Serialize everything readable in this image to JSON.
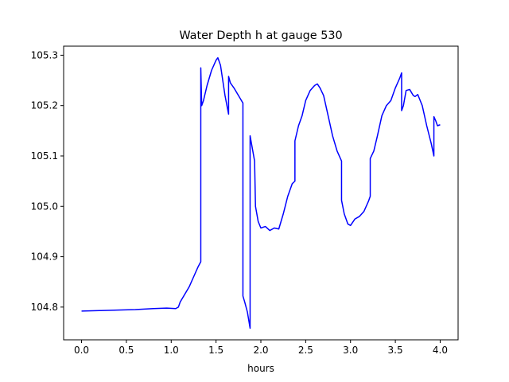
{
  "chart_data": {
    "type": "line",
    "title": "Water Depth h at gauge 530",
    "xlabel": "hours",
    "ylabel": "",
    "xlim": [
      -0.2,
      4.2
    ],
    "ylim": [
      104.735,
      105.318
    ],
    "xticks": [
      0.0,
      0.5,
      1.0,
      1.5,
      2.0,
      2.5,
      3.0,
      3.5,
      4.0
    ],
    "xtick_labels": [
      "0.0",
      "0.5",
      "1.0",
      "1.5",
      "2.0",
      "2.5",
      "3.0",
      "3.5",
      "4.0"
    ],
    "yticks": [
      104.8,
      104.9,
      105.0,
      105.1,
      105.2,
      105.3
    ],
    "ytick_labels": [
      "104.8",
      "104.9",
      "105.0",
      "105.1",
      "105.2",
      "105.3"
    ],
    "grid": false,
    "legend": "none",
    "series": [
      {
        "color": "#0000ff",
        "x": [
          0.0,
          0.2,
          0.4,
          0.6,
          0.8,
          0.95,
          1.05,
          1.08,
          1.1,
          1.15,
          1.2,
          1.25,
          1.3,
          1.33,
          1.33,
          1.34,
          1.36,
          1.4,
          1.45,
          1.5,
          1.52,
          1.55,
          1.6,
          1.64,
          1.64,
          1.66,
          1.7,
          1.75,
          1.8,
          1.8,
          1.82,
          1.85,
          1.88,
          1.88,
          1.9,
          1.92,
          1.93,
          1.94,
          1.97,
          2.0,
          2.05,
          2.1,
          2.15,
          2.2,
          2.25,
          2.3,
          2.35,
          2.38,
          2.38,
          2.42,
          2.46,
          2.5,
          2.55,
          2.6,
          2.63,
          2.66,
          2.7,
          2.75,
          2.8,
          2.85,
          2.9,
          2.9,
          2.93,
          2.97,
          3.0,
          3.05,
          3.1,
          3.15,
          3.2,
          3.22,
          3.22,
          3.26,
          3.3,
          3.35,
          3.4,
          3.45,
          3.5,
          3.55,
          3.57,
          3.57,
          3.59,
          3.62,
          3.66,
          3.7,
          3.72,
          3.75,
          3.8,
          3.85,
          3.9,
          3.93,
          3.93,
          3.95,
          3.97,
          4.0
        ],
        "y": [
          104.792,
          104.793,
          104.794,
          104.795,
          104.797,
          104.798,
          104.797,
          104.8,
          104.81,
          104.825,
          104.84,
          104.86,
          104.88,
          104.89,
          105.275,
          105.2,
          105.21,
          105.24,
          105.27,
          105.29,
          105.295,
          105.28,
          105.22,
          105.183,
          105.258,
          105.245,
          105.235,
          105.22,
          105.205,
          104.822,
          104.81,
          104.79,
          104.758,
          105.14,
          105.12,
          105.1,
          105.09,
          105.0,
          104.97,
          104.957,
          104.96,
          104.952,
          104.957,
          104.955,
          104.985,
          105.02,
          105.045,
          105.05,
          105.13,
          105.16,
          105.18,
          105.21,
          105.23,
          105.24,
          105.243,
          105.235,
          105.22,
          105.18,
          105.14,
          105.11,
          105.09,
          105.012,
          104.985,
          104.965,
          104.962,
          104.975,
          104.98,
          104.99,
          105.01,
          105.02,
          105.095,
          105.11,
          105.14,
          105.18,
          105.2,
          105.21,
          105.235,
          105.255,
          105.265,
          105.19,
          105.2,
          105.23,
          105.232,
          105.22,
          105.218,
          105.222,
          105.2,
          105.16,
          105.125,
          105.1,
          105.178,
          105.17,
          105.16,
          105.162
        ]
      }
    ]
  }
}
